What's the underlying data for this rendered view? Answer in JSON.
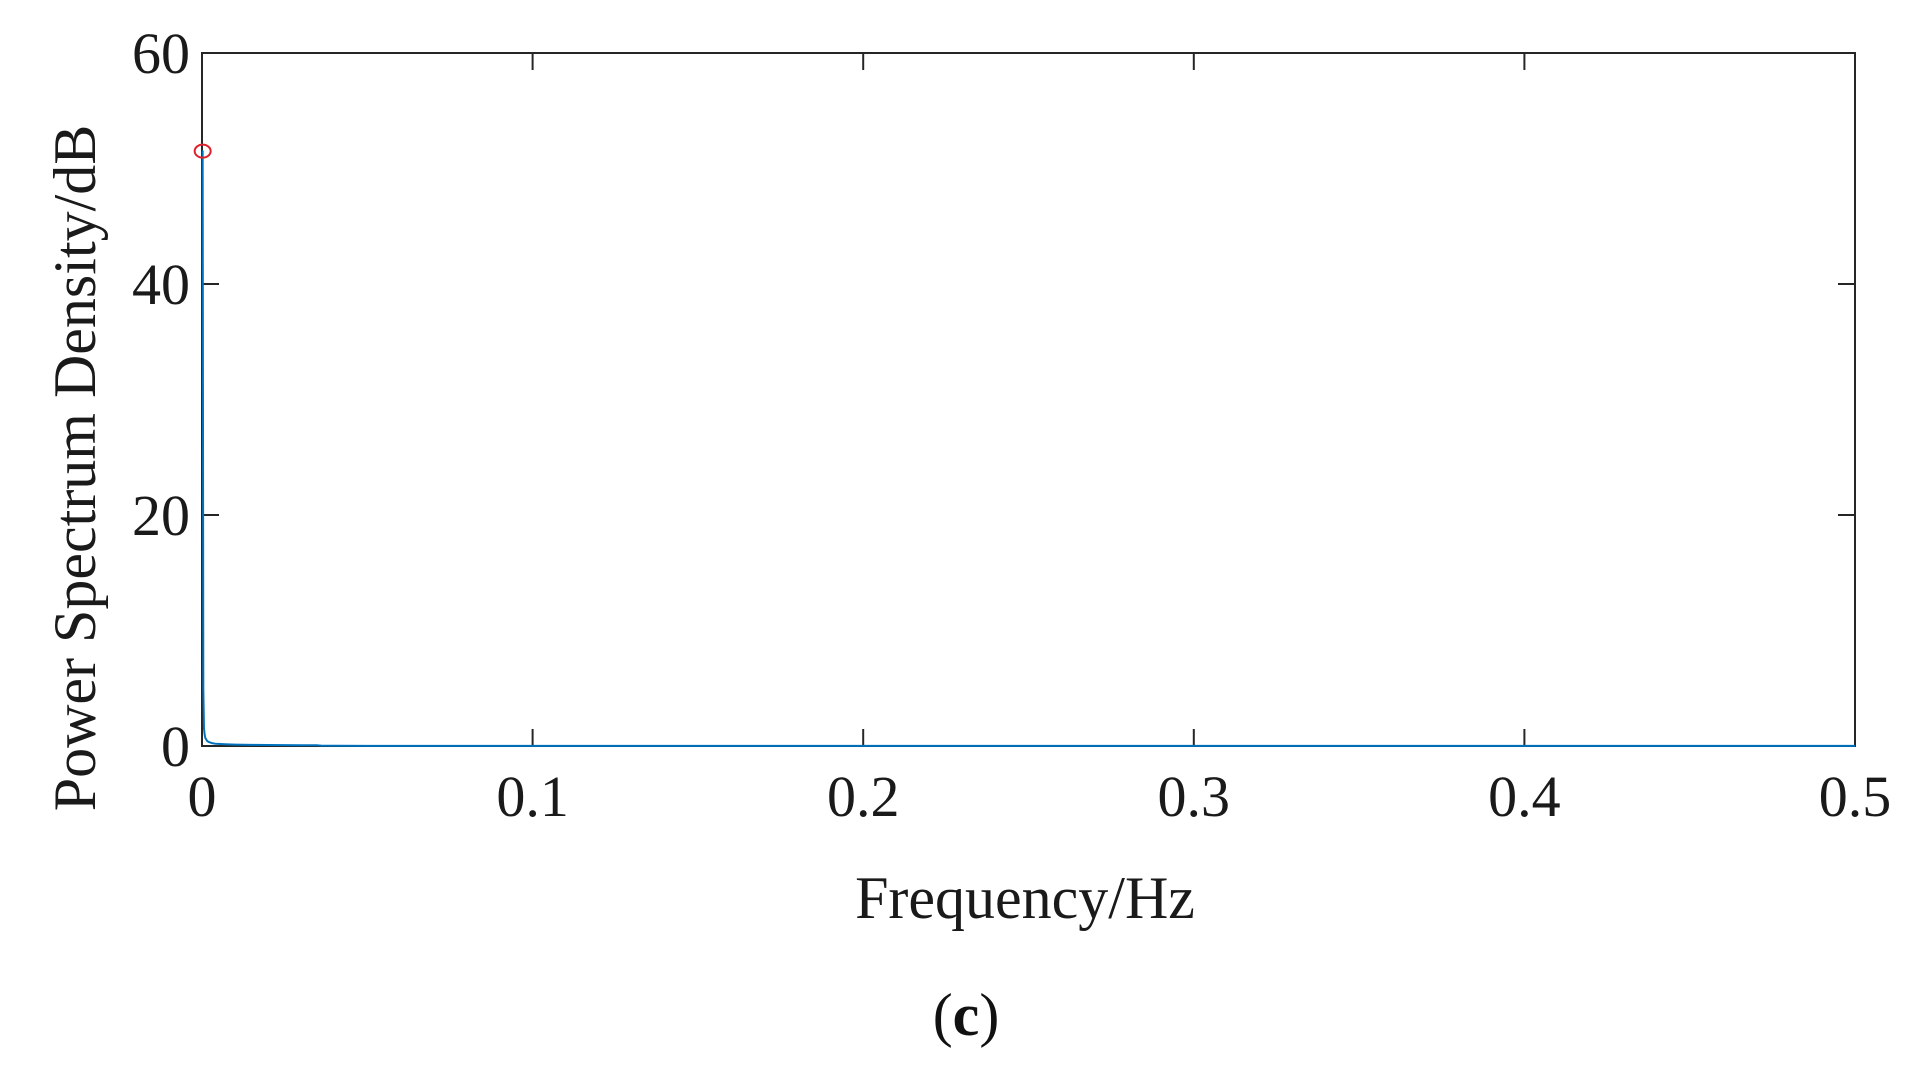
{
  "chart_data": {
    "type": "line",
    "title": "",
    "xlabel": "Frequency/Hz",
    "ylabel": "Power Spectrum Density/dB",
    "xlim": [
      0,
      0.5
    ],
    "ylim": [
      0,
      60
    ],
    "x_ticks": [
      0,
      0.1,
      0.2,
      0.3,
      0.4,
      0.5
    ],
    "x_tick_labels": [
      "0",
      "0.1",
      "0.2",
      "0.3",
      "0.4",
      "0.5"
    ],
    "y_ticks": [
      0,
      20,
      40,
      60
    ],
    "y_tick_labels": [
      "0",
      "20",
      "40",
      "60"
    ],
    "grid": false,
    "box": true,
    "series": [
      {
        "color": "#0072bd",
        "x": [
          0,
          0.0002,
          0.0004,
          0.0006,
          0.0008,
          0.001,
          0.0015,
          0.002,
          0.003,
          0.004,
          0.005,
          0.007,
          0.01,
          0.015,
          0.02,
          0.025,
          0.03,
          0.035,
          0.036,
          0.04,
          0.05,
          0.1,
          0.15,
          0.2,
          0.25,
          0.3,
          0.35,
          0.4,
          0.45,
          0.5
        ],
        "y": [
          51.5,
          51.5,
          5.0,
          1.5,
          1.0,
          0.7,
          0.45,
          0.35,
          0.25,
          0.2,
          0.18,
          0.15,
          0.12,
          0.1,
          0.09,
          0.08,
          0.07,
          0.06,
          0.03,
          0.02,
          0.01,
          0.01,
          0.01,
          0.01,
          0.01,
          0.01,
          0.01,
          0.01,
          0.01,
          0.01
        ]
      }
    ],
    "markers": [
      {
        "x": 0.0002,
        "y": 51.5,
        "shape": "circle",
        "color": "#e0202a"
      }
    ]
  },
  "panel_label": {
    "open": "(",
    "letter": "c",
    "close": ")"
  }
}
